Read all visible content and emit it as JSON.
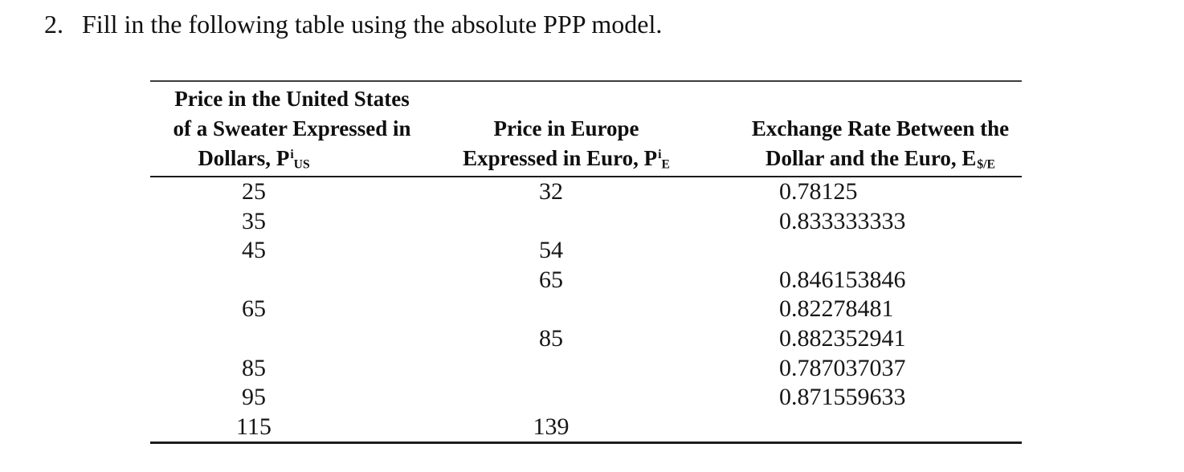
{
  "colors": {
    "ink": "#141414",
    "rule": "#1c1c1c",
    "background": "#ffffff"
  },
  "title": {
    "number": "2.",
    "text": "Fill in the following table using the absolute PPP model."
  },
  "table": {
    "columns": [
      {
        "header_lines": [
          "Price in the United States",
          "of a Sweater Expressed in"
        ],
        "symbol": {
          "prefix": "Dollars, ",
          "base": "P",
          "sup": "i",
          "sub": "US"
        }
      },
      {
        "header_lines": [
          "Price in Europe"
        ],
        "symbol": {
          "prefix": "Expressed in Euro, ",
          "base": "P",
          "sup": "i",
          "sub": "E"
        }
      },
      {
        "header_lines": [
          "Exchange Rate Between the"
        ],
        "symbol": {
          "prefix": "Dollar and the Euro, ",
          "base": "E",
          "sup": "",
          "sub": "$/E"
        }
      }
    ],
    "rows": [
      [
        "25",
        "32",
        "0.78125"
      ],
      [
        "35",
        "",
        "0.833333333"
      ],
      [
        "45",
        "54",
        ""
      ],
      [
        "",
        "65",
        "0.846153846"
      ],
      [
        "65",
        "",
        "0.82278481"
      ],
      [
        "",
        "85",
        "0.882352941"
      ],
      [
        "85",
        "",
        "0.787037037"
      ],
      [
        "95",
        "",
        "0.871559633"
      ],
      [
        "115",
        "139",
        ""
      ]
    ]
  }
}
